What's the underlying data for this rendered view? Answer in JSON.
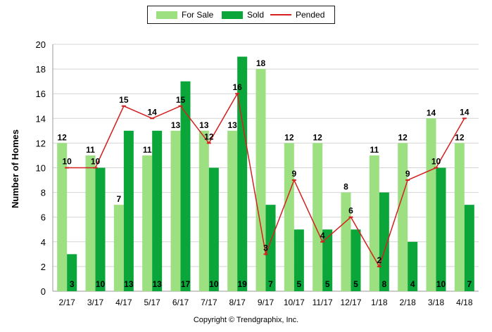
{
  "chart_data": {
    "type": "bar",
    "categories": [
      "2/17",
      "3/17",
      "4/17",
      "5/17",
      "6/17",
      "7/17",
      "8/17",
      "9/17",
      "10/17",
      "11/17",
      "12/17",
      "1/18",
      "2/18",
      "3/18",
      "4/18"
    ],
    "series": [
      {
        "name": "For Sale",
        "type": "bar",
        "color": "#9de082",
        "values": [
          12,
          11,
          7,
          11,
          13,
          13,
          13,
          18,
          12,
          12,
          8,
          11,
          12,
          14,
          12
        ]
      },
      {
        "name": "Sold",
        "type": "bar",
        "color": "#0aa63a",
        "values": [
          3,
          10,
          13,
          13,
          17,
          10,
          19,
          7,
          5,
          5,
          5,
          8,
          4,
          10,
          7
        ]
      },
      {
        "name": "Pended",
        "type": "line",
        "color": "#d42020",
        "values": [
          10,
          10,
          15,
          14,
          15,
          12,
          16,
          3,
          9,
          4,
          6,
          2,
          9,
          10,
          14
        ]
      }
    ],
    "ylabel": "Number of Homes",
    "xlabel": "",
    "ylim": [
      0,
      20
    ],
    "yticks": [
      0,
      2,
      4,
      6,
      8,
      10,
      12,
      14,
      16,
      18,
      20
    ],
    "grid": true,
    "legend_position": "top-center"
  },
  "credit": "Copyright © Trendgraphix, Inc."
}
